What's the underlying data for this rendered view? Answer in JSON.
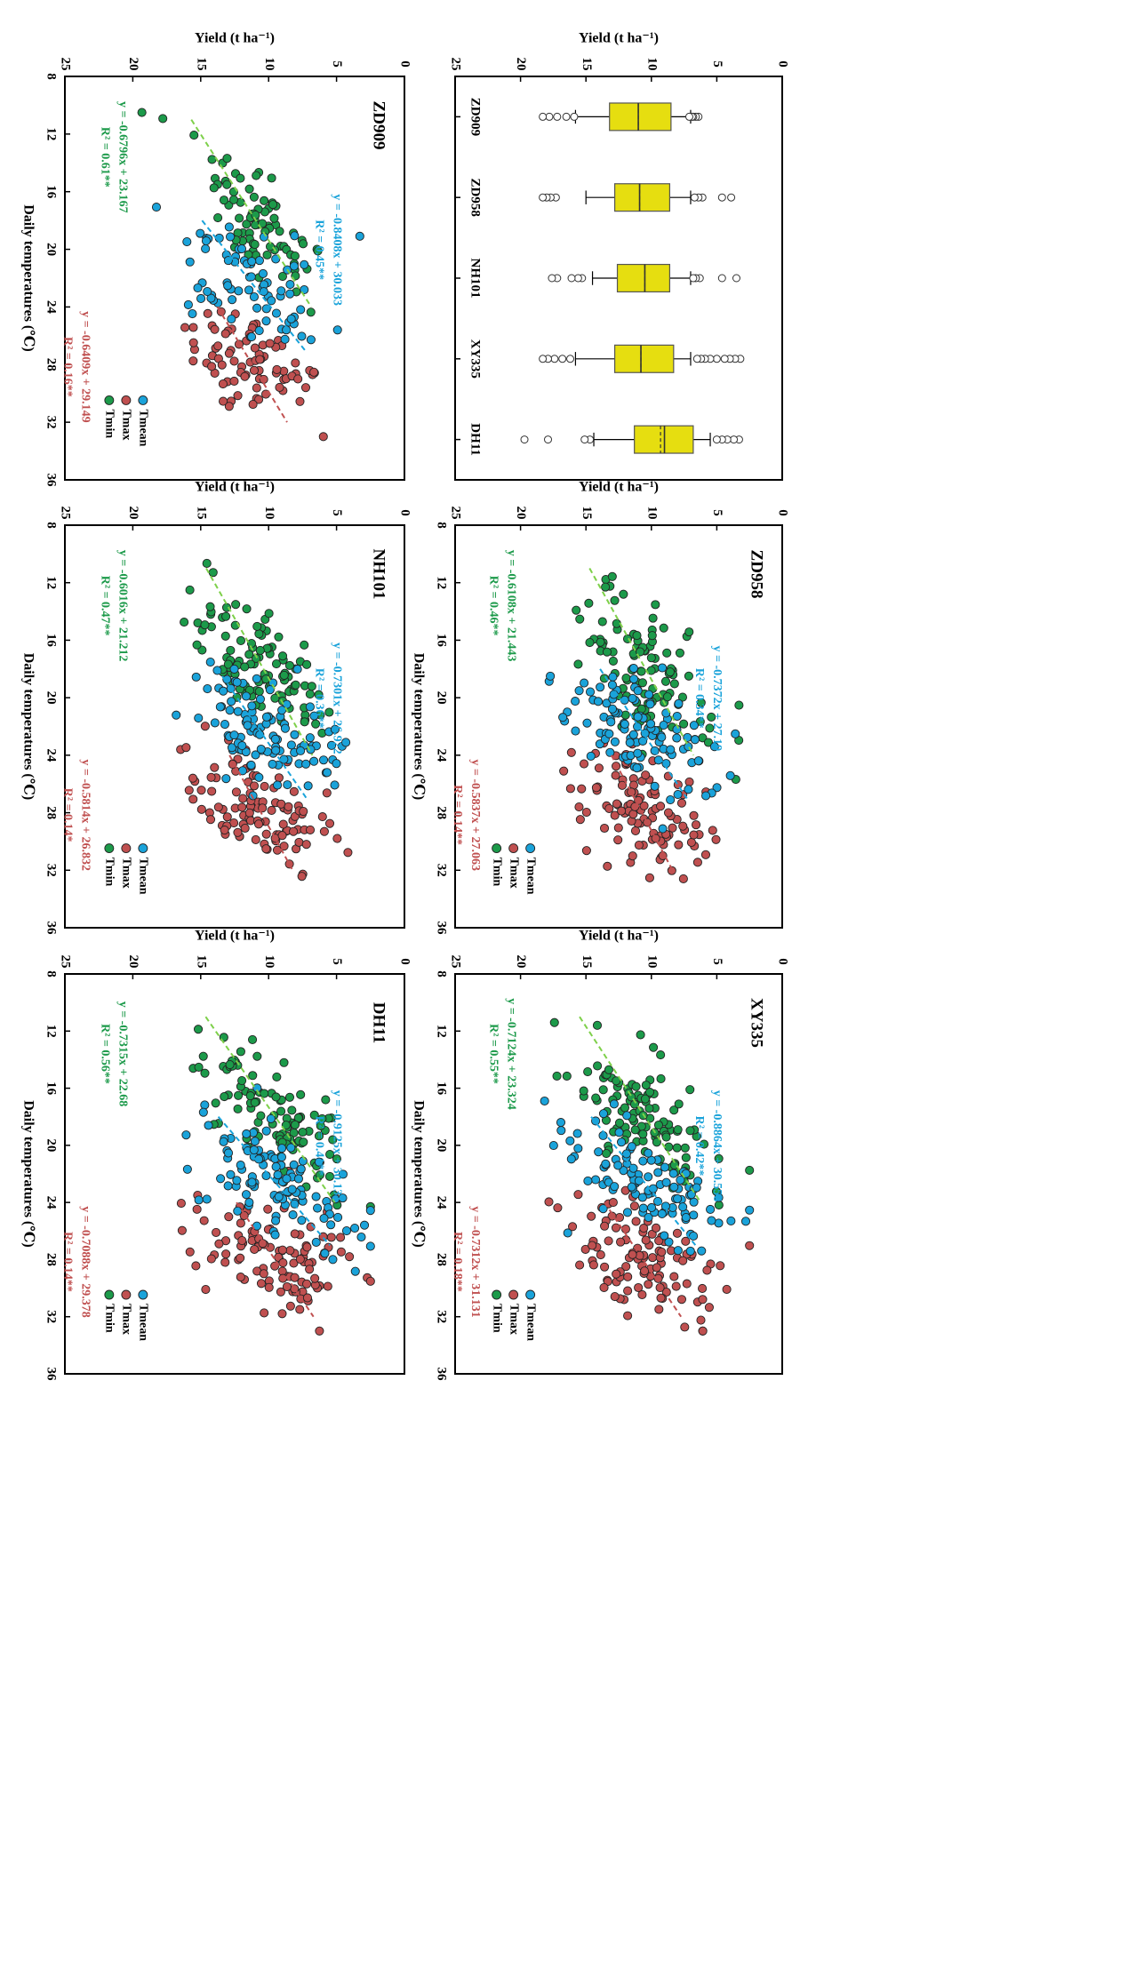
{
  "chart_data": [
    {
      "type": "box",
      "panel_id": "boxplot",
      "xlabel": "",
      "ylabel": "Yield (t ha⁻¹)",
      "ylim": [
        0,
        25
      ],
      "yticks": [
        0,
        5,
        10,
        15,
        20,
        25
      ],
      "categories": [
        "ZD909",
        "ZD958",
        "NH101",
        "XY335",
        "DH11"
      ],
      "boxes": [
        {
          "name": "ZD909",
          "min": 7.0,
          "q1": 8.5,
          "median": 11.0,
          "mean": 11.0,
          "q3": 13.2,
          "max": 15.8,
          "outliers": [
            6.4,
            6.6,
            6.8,
            6.9,
            7.1,
            15.9,
            16.5,
            17.2,
            17.8,
            18.3
          ]
        },
        {
          "name": "ZD958",
          "min": 7.0,
          "q1": 8.6,
          "median": 10.9,
          "mean": 10.9,
          "q3": 12.8,
          "max": 15.0,
          "outliers": [
            3.9,
            4.6,
            6.1,
            6.4,
            6.7,
            17.3,
            17.7,
            18.0,
            18.3
          ]
        },
        {
          "name": "NH101",
          "min": 7.0,
          "q1": 8.6,
          "median": 10.5,
          "mean": 10.5,
          "q3": 12.6,
          "max": 14.5,
          "outliers": [
            3.5,
            4.6,
            6.3,
            6.6,
            6.8,
            15.3,
            15.6,
            16.1,
            17.2,
            17.6
          ]
        },
        {
          "name": "XY335",
          "min": 7.0,
          "q1": 8.3,
          "median": 10.8,
          "mean": 10.8,
          "q3": 12.8,
          "max": 15.8,
          "outliers": [
            3.2,
            3.6,
            4.0,
            4.4,
            5.0,
            5.5,
            5.9,
            6.2,
            6.5,
            16.2,
            16.8,
            17.4,
            17.9,
            18.3
          ]
        },
        {
          "name": "DH11",
          "min": 5.5,
          "q1": 6.8,
          "median": 9.0,
          "mean": 9.3,
          "q3": 11.3,
          "max": 14.4,
          "outliers": [
            3.3,
            3.7,
            4.2,
            4.6,
            5.0,
            14.7,
            15.1,
            17.9,
            19.7
          ]
        }
      ]
    },
    {
      "type": "scatter",
      "panel_id": "ZD909",
      "title": "ZD909",
      "xlabel": "Daily temperatures (℃)",
      "ylabel": "Yield (t ha⁻¹)",
      "xlim": [
        8,
        36
      ],
      "ylim": [
        0,
        25
      ],
      "xticks": [
        8,
        12,
        16,
        20,
        24,
        28,
        32,
        36
      ],
      "yticks": [
        0,
        5,
        10,
        15,
        20,
        25
      ],
      "legend": "Tmean / Tmax / Tmin markers at lower-right",
      "series": [
        {
          "name": "Tmean",
          "color": "#1aa3da",
          "equation": "y = -0.8408x + 30.033",
          "r2": "R² = 0.45**",
          "slope": -0.8408,
          "intercept": 30.033,
          "fit_x": [
            18.0,
            27.0
          ],
          "center_x": 22.5,
          "center_y": 11.1,
          "noise_y": 3.4,
          "x_spread": 4.0,
          "n": 80
        },
        {
          "name": "Tmax",
          "color": "#c05050",
          "equation": "y = -0.6409x + 29.149",
          "r2": "R² = 0.16**",
          "slope": -0.6409,
          "intercept": 29.149,
          "fit_x": [
            24.0,
            32.0
          ],
          "center_x": 28.0,
          "center_y": 11.2,
          "noise_y": 3.3,
          "x_spread": 3.5,
          "n": 80
        },
        {
          "name": "Tmin",
          "color": "#1c9a4a",
          "equation": "y = -0.6796x + 23.167",
          "r2": "R² = 0.61**",
          "slope": -0.6796,
          "intercept": 23.167,
          "fit_x": [
            11.0,
            24.0
          ],
          "center_x": 18.0,
          "center_y": 11.0,
          "noise_y": 2.4,
          "x_spread": 5.0,
          "n": 80
        }
      ]
    },
    {
      "type": "scatter",
      "panel_id": "ZD958",
      "title": "ZD958",
      "xlabel": "Daily temperatures (℃)",
      "ylabel": "Yield (t ha⁻¹)",
      "xlim": [
        8,
        36
      ],
      "ylim": [
        0,
        25
      ],
      "xticks": [
        8,
        12,
        16,
        20,
        24,
        28,
        32,
        36
      ],
      "yticks": [
        0,
        5,
        10,
        15,
        20,
        25
      ],
      "legend": "Tmean / Tmax / Tmin markers at lower-right",
      "series": [
        {
          "name": "Tmean",
          "color": "#1aa3da",
          "equation": "y = -0.7372x + 27.19",
          "r2": "R² = 0.34**",
          "slope": -0.7372,
          "intercept": 27.19,
          "fit_x": [
            18.0,
            27.0
          ],
          "center_x": 22.5,
          "center_y": 10.6,
          "noise_y": 3.4,
          "x_spread": 4.0,
          "n": 110
        },
        {
          "name": "Tmax",
          "color": "#c05050",
          "equation": "y = -0.5837x + 27.063",
          "r2": "R² = 0.14**",
          "slope": -0.5837,
          "intercept": 27.063,
          "fit_x": [
            24.0,
            32.0
          ],
          "center_x": 28.0,
          "center_y": 10.7,
          "noise_y": 3.3,
          "x_spread": 3.5,
          "n": 110
        },
        {
          "name": "Tmin",
          "color": "#1c9a4a",
          "equation": "y = -0.6108x + 21.443",
          "r2": "R² = 0.46**",
          "slope": -0.6108,
          "intercept": 21.443,
          "fit_x": [
            11.0,
            24.0
          ],
          "center_x": 18.0,
          "center_y": 10.5,
          "noise_y": 2.6,
          "x_spread": 5.0,
          "n": 110
        }
      ]
    },
    {
      "type": "scatter",
      "panel_id": "XY335",
      "title": "XY335",
      "xlabel": "Daily temperatures (℃)",
      "ylabel": "Yield (t ha⁻¹)",
      "xlim": [
        8,
        36
      ],
      "ylim": [
        0,
        25
      ],
      "xticks": [
        8,
        12,
        16,
        20,
        24,
        28,
        32,
        36
      ],
      "yticks": [
        0,
        5,
        10,
        15,
        20,
        25
      ],
      "legend": "Tmean / Tmax / Tmin markers at lower-right",
      "series": [
        {
          "name": "Tmean",
          "color": "#1aa3da",
          "equation": "y = -0.8864x + 30.556",
          "r2": "R² = 0.42**",
          "slope": -0.8864,
          "intercept": 30.556,
          "fit_x": [
            18.0,
            27.0
          ],
          "center_x": 22.5,
          "center_y": 10.6,
          "noise_y": 3.5,
          "x_spread": 4.0,
          "n": 110
        },
        {
          "name": "Tmax",
          "color": "#c05050",
          "equation": "y = -0.7312x + 31.131",
          "r2": "R² = 0.18**",
          "slope": -0.7312,
          "intercept": 31.131,
          "fit_x": [
            24.0,
            32.0
          ],
          "center_x": 28.0,
          "center_y": 10.6,
          "noise_y": 3.4,
          "x_spread": 3.5,
          "n": 110
        },
        {
          "name": "Tmin",
          "color": "#1c9a4a",
          "equation": "y = -0.7124x + 23.324",
          "r2": "R² = 0.55**",
          "slope": -0.7124,
          "intercept": 23.324,
          "fit_x": [
            11.0,
            24.0
          ],
          "center_x": 18.0,
          "center_y": 10.5,
          "noise_y": 2.6,
          "x_spread": 5.0,
          "n": 110
        }
      ]
    },
    {
      "type": "scatter",
      "panel_id": "NH101",
      "title": "NH101",
      "xlabel": "Daily temperatures (℃)",
      "ylabel": "Yield (t ha⁻¹)",
      "xlim": [
        8,
        36
      ],
      "ylim": [
        0,
        25
      ],
      "xticks": [
        8,
        12,
        16,
        20,
        24,
        28,
        32,
        36
      ],
      "yticks": [
        0,
        5,
        10,
        15,
        20,
        25
      ],
      "legend": "Tmean / Tmax / Tmin markers at lower-right",
      "series": [
        {
          "name": "Tmean",
          "color": "#1aa3da",
          "equation": "y = -0.7301x + 26.922",
          "r2": "R² = 0.36**",
          "slope": -0.7301,
          "intercept": 26.922,
          "fit_x": [
            18.0,
            27.0
          ],
          "center_x": 22.5,
          "center_y": 10.5,
          "noise_y": 3.3,
          "x_spread": 4.0,
          "n": 110
        },
        {
          "name": "Tmax",
          "color": "#c05050",
          "equation": "y = -0.5814x + 26.832",
          "r2": "R² = 0.14*",
          "slope": -0.5814,
          "intercept": 26.832,
          "fit_x": [
            24.0,
            32.0
          ],
          "center_x": 28.0,
          "center_y": 10.5,
          "noise_y": 3.4,
          "x_spread": 3.5,
          "n": 110
        },
        {
          "name": "Tmin",
          "color": "#1c9a4a",
          "equation": "y = -0.6016x + 21.212",
          "r2": "R² = 0.47**",
          "slope": -0.6016,
          "intercept": 21.212,
          "fit_x": [
            11.0,
            24.0
          ],
          "center_x": 18.0,
          "center_y": 10.4,
          "noise_y": 2.5,
          "x_spread": 5.0,
          "n": 110
        }
      ]
    },
    {
      "type": "scatter",
      "panel_id": "DH11",
      "title": "DH11",
      "xlabel": "Daily temperatures (℃)",
      "ylabel": "Yield (t ha⁻¹)",
      "xlim": [
        8,
        36
      ],
      "ylim": [
        0,
        25
      ],
      "xticks": [
        8,
        12,
        16,
        20,
        24,
        28,
        32,
        36
      ],
      "yticks": [
        0,
        5,
        10,
        15,
        20,
        25
      ],
      "legend": "Tmean / Tmax / Tmin markers at lower-right",
      "series": [
        {
          "name": "Tmean",
          "color": "#1aa3da",
          "equation": "y = -0.9125x + 30.131",
          "r2": "R² = 0.41**",
          "slope": -0.9125,
          "intercept": 30.131,
          "fit_x": [
            18.0,
            27.0
          ],
          "center_x": 22.5,
          "center_y": 9.6,
          "noise_y": 3.4,
          "x_spread": 4.0,
          "n": 110
        },
        {
          "name": "Tmax",
          "color": "#c05050",
          "equation": "y = -0.7088x + 29.378",
          "r2": "R² = 0.14**",
          "slope": -0.7088,
          "intercept": 29.378,
          "fit_x": [
            24.0,
            32.0
          ],
          "center_x": 28.0,
          "center_y": 9.6,
          "noise_y": 3.4,
          "x_spread": 3.5,
          "n": 110
        },
        {
          "name": "Tmin",
          "color": "#1c9a4a",
          "equation": "y = -0.7315x + 22.68",
          "r2": "R² = 0.56**",
          "slope": -0.7315,
          "intercept": 22.68,
          "fit_x": [
            11.0,
            24.0
          ],
          "center_x": 18.0,
          "center_y": 9.5,
          "noise_y": 2.6,
          "x_spread": 5.0,
          "n": 110
        }
      ]
    }
  ]
}
